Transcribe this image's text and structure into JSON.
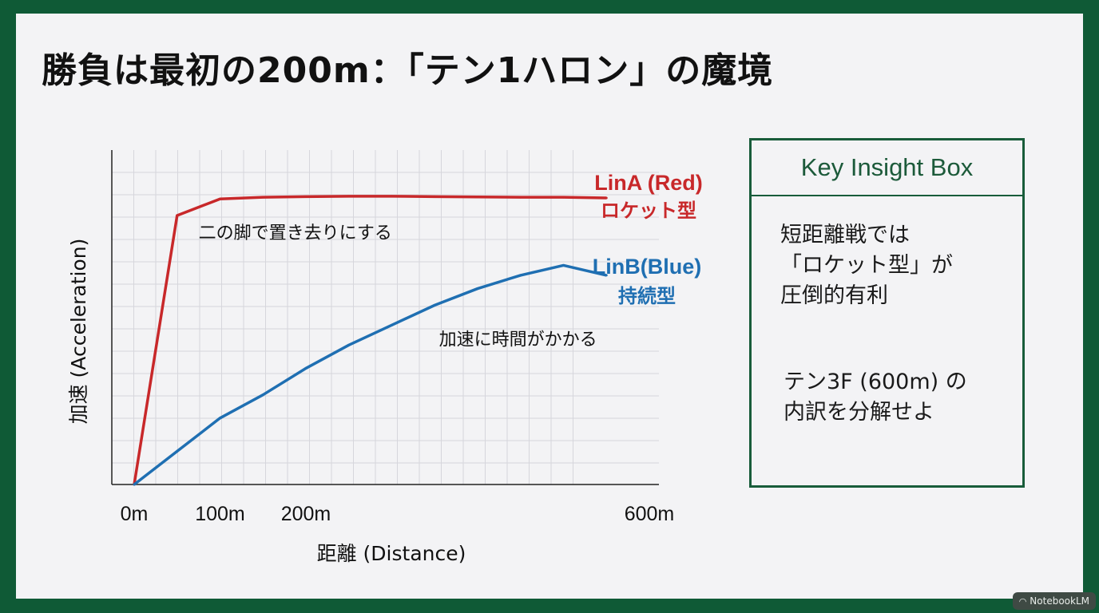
{
  "title": "勝負は最初の200m：「テン1ハロン」の魔境",
  "chart_data": {
    "type": "line",
    "xlabel": "距離 (Distance)",
    "ylabel": "加速 (Acceleration)",
    "xlim": [
      0,
      600
    ],
    "ylim": [
      0,
      100
    ],
    "x_ticks": [
      {
        "value": 0,
        "label": "0m"
      },
      {
        "value": 100,
        "label": "100m"
      },
      {
        "value": 200,
        "label": "200m"
      },
      {
        "value": 600,
        "label": "600m"
      }
    ],
    "grid": true,
    "series": [
      {
        "name": "LinA (Red)",
        "subtitle": "ロケット型",
        "color": "#c8282a",
        "x": [
          0,
          50,
          100,
          150,
          200,
          250,
          300,
          350,
          400,
          450,
          500,
          550
        ],
        "y": [
          0,
          81,
          86,
          86.5,
          86.7,
          86.8,
          86.8,
          86.7,
          86.6,
          86.5,
          86.5,
          86.3
        ]
      },
      {
        "name": "LinB(Blue)",
        "subtitle": "持続型",
        "color": "#1f6fb2",
        "x": [
          0,
          50,
          100,
          150,
          200,
          250,
          300,
          350,
          400,
          450,
          500,
          550
        ],
        "y": [
          0,
          10,
          20,
          27,
          35,
          42,
          48,
          54,
          59,
          63,
          66,
          63
        ]
      }
    ],
    "annotations": [
      {
        "text": "二の脚で置き去りにする",
        "x": 75,
        "y": 74
      },
      {
        "text": "加速に時間がかかる",
        "x": 355,
        "y": 42
      }
    ]
  },
  "insight": {
    "header": "Key Insight Box",
    "para1": "短距離戦では\n「ロケット型」が\n圧倒的有利",
    "para2": "テン3F (600m) の\n内訳を分解せよ"
  },
  "badge": {
    "label": "NotebookLM",
    "icon": "notebooklm-icon"
  }
}
